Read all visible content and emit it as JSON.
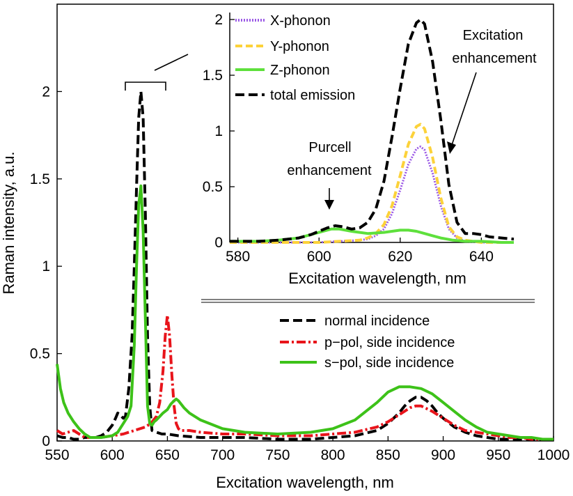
{
  "chart_data": [
    {
      "type": "line",
      "title": "",
      "xlabel": "Excitation wavelength, nm",
      "ylabel": "Raman intensity, a.u.",
      "xlim": [
        550,
        1000
      ],
      "ylim": [
        0,
        2.5
      ],
      "x_ticks": [
        "550",
        "600",
        "650",
        "700",
        "750",
        "800",
        "850",
        "900",
        "950",
        "1000"
      ],
      "y_ticks": [
        "0",
        "0.5",
        "1",
        "1.5",
        "2"
      ],
      "legend_position": "center-right",
      "series": [
        {
          "name": "normal incidence",
          "color": "#000000",
          "x": [
            550,
            555,
            560,
            565,
            570,
            575,
            580,
            585,
            590,
            595,
            600,
            603,
            605,
            607,
            610,
            612,
            615,
            618,
            620,
            622,
            624,
            626,
            628,
            630,
            632,
            634,
            636,
            640,
            645,
            650,
            660,
            680,
            700,
            720,
            750,
            780,
            800,
            820,
            840,
            850,
            860,
            865,
            870,
            875,
            880,
            885,
            890,
            895,
            900,
            910,
            920,
            930,
            940,
            950,
            960,
            970,
            980,
            990,
            1000
          ],
          "y": [
            0.03,
            0.02,
            0.02,
            0.01,
            0.01,
            0.02,
            0.02,
            0.02,
            0.03,
            0.05,
            0.09,
            0.13,
            0.16,
            0.15,
            0.13,
            0.14,
            0.3,
            0.6,
            1.0,
            1.45,
            1.85,
            2.0,
            1.85,
            1.3,
            0.6,
            0.2,
            0.06,
            0.05,
            0.04,
            0.04,
            0.03,
            0.02,
            0.02,
            0.02,
            0.01,
            0.01,
            0.02,
            0.03,
            0.06,
            0.1,
            0.16,
            0.2,
            0.23,
            0.25,
            0.25,
            0.23,
            0.2,
            0.16,
            0.13,
            0.08,
            0.05,
            0.03,
            0.02,
            0.01,
            0.01,
            0.01,
            0.01,
            0.01,
            0.01
          ]
        },
        {
          "name": "p−pol, side incidence",
          "color": "#e8141b",
          "x": [
            550,
            555,
            560,
            565,
            570,
            575,
            580,
            585,
            590,
            600,
            610,
            620,
            630,
            635,
            640,
            643,
            646,
            648,
            650,
            652,
            654,
            656,
            658,
            660,
            662,
            665,
            670,
            680,
            700,
            720,
            750,
            780,
            800,
            820,
            840,
            850,
            860,
            870,
            875,
            880,
            890,
            900,
            910,
            920,
            930,
            940,
            950,
            960,
            970,
            980,
            990,
            1000
          ],
          "y": [
            0.06,
            0.04,
            0.05,
            0.06,
            0.04,
            0.02,
            0.02,
            0.02,
            0.02,
            0.03,
            0.04,
            0.06,
            0.08,
            0.1,
            0.14,
            0.22,
            0.4,
            0.6,
            0.72,
            0.6,
            0.38,
            0.2,
            0.1,
            0.07,
            0.06,
            0.06,
            0.06,
            0.05,
            0.04,
            0.04,
            0.03,
            0.03,
            0.04,
            0.05,
            0.08,
            0.11,
            0.15,
            0.19,
            0.2,
            0.2,
            0.17,
            0.13,
            0.09,
            0.06,
            0.05,
            0.04,
            0.03,
            0.02,
            0.02,
            0.01,
            0.01,
            0.01
          ]
        },
        {
          "name": "s−pol, side incidence",
          "color": "#3dc219",
          "x": [
            550,
            553,
            556,
            560,
            565,
            570,
            575,
            580,
            590,
            600,
            605,
            610,
            614,
            617,
            620,
            622,
            624,
            626,
            628,
            630,
            632,
            634,
            636,
            638,
            640,
            643,
            646,
            650,
            653,
            656,
            658,
            660,
            665,
            670,
            680,
            700,
            720,
            750,
            780,
            800,
            820,
            840,
            850,
            860,
            870,
            880,
            890,
            900,
            910,
            920,
            930,
            940,
            950,
            960,
            970,
            980,
            990,
            1000
          ],
          "y": [
            0.44,
            0.3,
            0.22,
            0.16,
            0.11,
            0.07,
            0.04,
            0.02,
            0.02,
            0.03,
            0.05,
            0.1,
            0.14,
            0.2,
            0.55,
            1.0,
            1.35,
            1.46,
            1.2,
            0.7,
            0.2,
            0.1,
            0.09,
            0.11,
            0.12,
            0.14,
            0.16,
            0.18,
            0.21,
            0.23,
            0.24,
            0.23,
            0.19,
            0.16,
            0.12,
            0.07,
            0.05,
            0.04,
            0.05,
            0.07,
            0.12,
            0.22,
            0.28,
            0.31,
            0.31,
            0.3,
            0.27,
            0.22,
            0.17,
            0.12,
            0.08,
            0.05,
            0.04,
            0.03,
            0.02,
            0.02,
            0.01,
            0.01
          ]
        }
      ],
      "annotations": []
    },
    {
      "type": "line",
      "title": "",
      "xlabel": "Excitation wavelength, nm",
      "ylabel": "",
      "xlim": [
        578,
        648
      ],
      "ylim": [
        0,
        2
      ],
      "x_ticks": [
        "580",
        "600",
        "620",
        "640"
      ],
      "y_ticks": [
        "0",
        "0.5",
        "1",
        "1.5",
        "2"
      ],
      "legend_position": "top-left",
      "series": [
        {
          "name": "X-phonon",
          "color": "#9b59e6",
          "x": [
            578,
            590,
            600,
            605,
            610,
            612,
            614,
            616,
            618,
            620,
            622,
            624,
            625,
            626,
            628,
            630,
            632,
            634,
            636,
            640,
            645,
            648
          ],
          "y": [
            0,
            0,
            0,
            0.01,
            0.02,
            0.03,
            0.06,
            0.12,
            0.26,
            0.47,
            0.7,
            0.84,
            0.86,
            0.83,
            0.62,
            0.33,
            0.12,
            0.04,
            0.01,
            0,
            0,
            0
          ]
        },
        {
          "name": "Y-phonon",
          "color": "#fcd23a",
          "x": [
            578,
            590,
            600,
            605,
            610,
            612,
            614,
            616,
            618,
            620,
            622,
            624,
            625,
            626,
            628,
            630,
            632,
            634,
            636,
            640,
            645,
            648
          ],
          "y": [
            0,
            0,
            0,
            0.01,
            0.02,
            0.04,
            0.08,
            0.16,
            0.33,
            0.6,
            0.88,
            1.04,
            1.06,
            1.02,
            0.76,
            0.4,
            0.14,
            0.05,
            0.02,
            0,
            0,
            0
          ]
        },
        {
          "name": "Z-phonon",
          "color": "#5ee03c",
          "x": [
            578,
            585,
            590,
            595,
            600,
            603,
            605,
            608,
            612,
            616,
            620,
            622,
            624,
            626,
            628,
            630,
            633,
            636,
            640,
            645,
            648
          ],
          "y": [
            0.01,
            0.01,
            0.02,
            0.04,
            0.09,
            0.12,
            0.12,
            0.1,
            0.08,
            0.09,
            0.11,
            0.11,
            0.1,
            0.08,
            0.06,
            0.04,
            0.02,
            0.01,
            0.01,
            0,
            0
          ]
        },
        {
          "name": "total emission",
          "color": "#000000",
          "x": [
            578,
            585,
            590,
            595,
            598,
            600,
            602,
            604,
            606,
            608,
            610,
            612,
            614,
            616,
            618,
            620,
            622,
            624,
            625,
            626,
            628,
            630,
            632,
            634,
            636,
            638,
            640,
            642,
            645,
            648
          ],
          "y": [
            0.01,
            0.01,
            0.02,
            0.04,
            0.07,
            0.1,
            0.13,
            0.15,
            0.14,
            0.12,
            0.13,
            0.18,
            0.3,
            0.55,
            0.95,
            1.38,
            1.78,
            1.97,
            2.0,
            1.96,
            1.62,
            1.1,
            0.52,
            0.18,
            0.08,
            0.08,
            0.07,
            0.05,
            0.04,
            0.03
          ]
        }
      ],
      "annotations": [
        {
          "text_lines": [
            "Excitation",
            "enhancement"
          ],
          "target_x": 633,
          "target_y": 0.75
        },
        {
          "text_lines": [
            "Purcell",
            "enhancement"
          ],
          "target_x": 604,
          "target_y": 0.25
        }
      ]
    }
  ]
}
